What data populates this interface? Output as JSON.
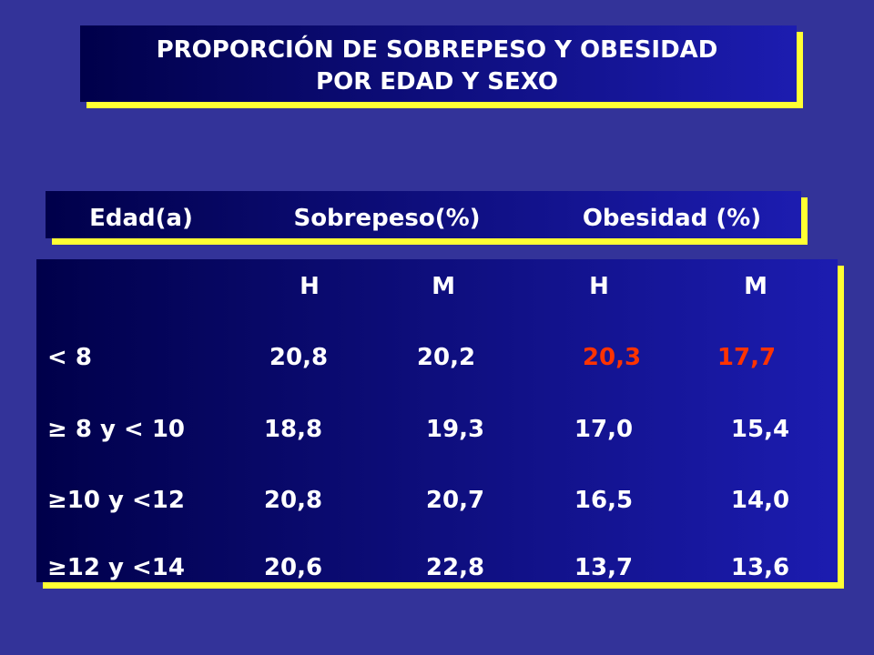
{
  "title": {
    "lines": [
      "PROPORCIÓN DE SOBREPESO Y OBESIDAD",
      "POR EDAD Y SEXO"
    ]
  },
  "header": [
    "Edad(a)",
    "Sobrepeso(%)",
    "Obesidad (%)"
  ],
  "subheader": [
    "H",
    "M",
    "H",
    "M"
  ],
  "rows": [
    {
      "label": "< 8",
      "values": [
        "20,8",
        "20,2",
        "20,3",
        "17,7"
      ]
    },
    {
      "label": "≥ 8 y < 10",
      "values": [
        "18,8",
        "19,3",
        "17,0",
        "15,4"
      ]
    },
    {
      "label": "≥10 y <12",
      "values": [
        "20,8",
        "20,7",
        "16,5",
        "14,0"
      ]
    },
    {
      "label": "≥12 y <14",
      "values": [
        "20,6",
        "22,8",
        "13,7",
        "13,6"
      ]
    }
  ]
}
